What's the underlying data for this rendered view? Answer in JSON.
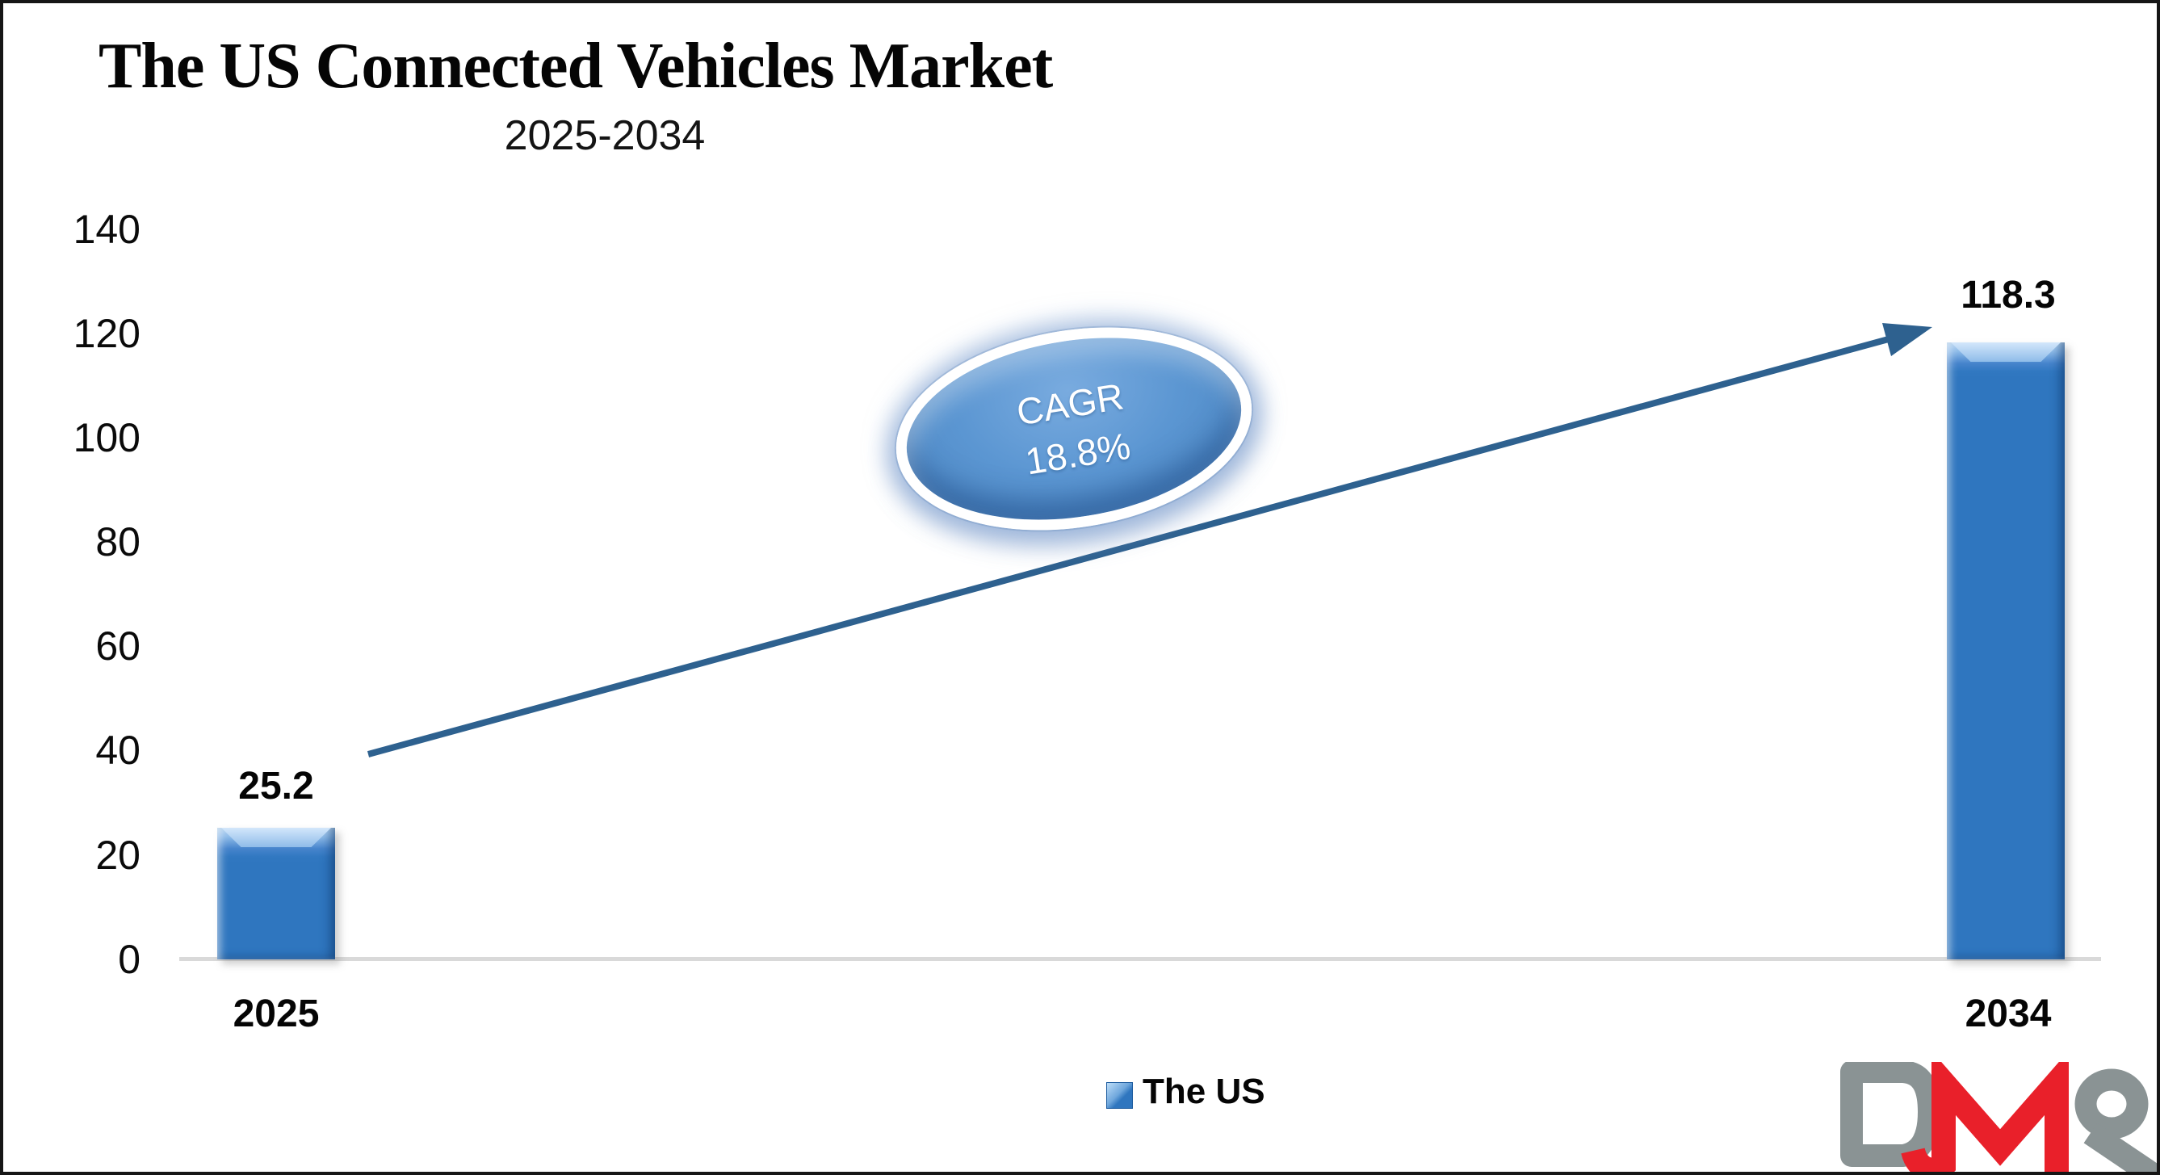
{
  "chart_data": {
    "type": "bar",
    "title": "The US Connected Vehicles Market",
    "subtitle": "2025-2034",
    "categories": [
      "2025",
      "2034"
    ],
    "series": [
      {
        "name": "The US",
        "values": [
          25.2,
          118.3
        ]
      }
    ],
    "data_labels": [
      "25.2",
      "118.3"
    ],
    "ylim": [
      0,
      140
    ],
    "yticks": [
      "140",
      "120",
      "100",
      "80",
      "60",
      "40",
      "20",
      "0"
    ],
    "grid": false,
    "legend_position": "bottom",
    "annotation": {
      "line1": "CAGR",
      "line2": "18.8%",
      "shape": "ellipse-with-arrow"
    },
    "colors": {
      "bar": "#2F76BF",
      "bar_bevel_light": "#BFDDF8",
      "arrow": "#2E618F",
      "ellipse_fill": "#5B96D2",
      "ellipse_ring": "#FFFFFF",
      "axis_line": "#D9D9D9",
      "text": "#000000"
    }
  },
  "legend": {
    "items": [
      {
        "label": "The US",
        "color": "#2F76BF"
      }
    ]
  },
  "logo": {
    "text": "DMR",
    "color_gray": "#8A9394",
    "color_red": "#E9202A"
  }
}
